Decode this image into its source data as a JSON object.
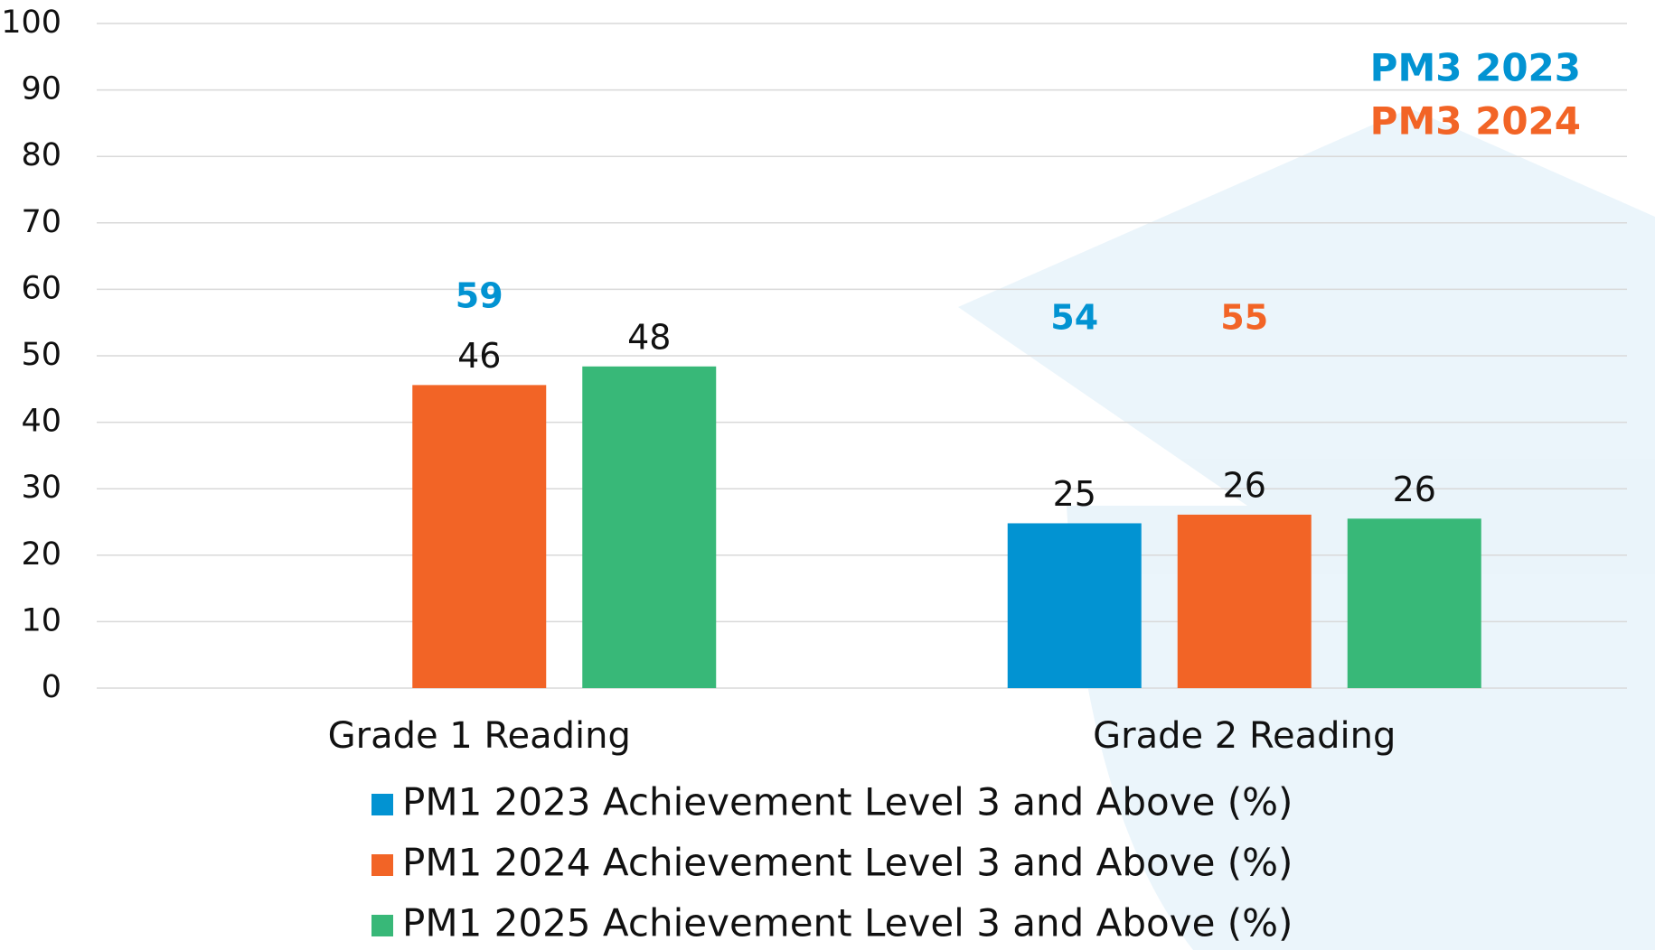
{
  "chart_data": {
    "type": "bar",
    "categories": [
      "Grade 1 Reading",
      "Grade 2 Reading"
    ],
    "series": [
      {
        "name": "PM1 2023 Achievement Level 3 and Above (%)",
        "color": "#0293d2",
        "values": [
          null,
          24.8
        ],
        "value_labels": [
          null,
          "25"
        ]
      },
      {
        "name": "PM1 2024 Achievement Level 3 and Above (%)",
        "color": "#f26426",
        "values": [
          45.6,
          26.1
        ],
        "value_labels": [
          "46",
          "26"
        ]
      },
      {
        "name": "PM1 2025 Achievement Level 3 and Above (%)",
        "color": "#38b878",
        "values": [
          48.4,
          25.5
        ],
        "value_labels": [
          "48",
          "26"
        ]
      }
    ],
    "pm3_series": [
      {
        "name": "PM3 2023",
        "color": "#0293d2",
        "values": [
          59,
          54
        ]
      },
      {
        "name": "PM3 2024",
        "color": "#f26426",
        "values": [
          null,
          55
        ]
      }
    ],
    "ylim": [
      0,
      100
    ],
    "yticks": [
      0,
      10,
      20,
      30,
      40,
      50,
      60,
      70,
      80,
      90,
      100
    ],
    "grid": true
  }
}
